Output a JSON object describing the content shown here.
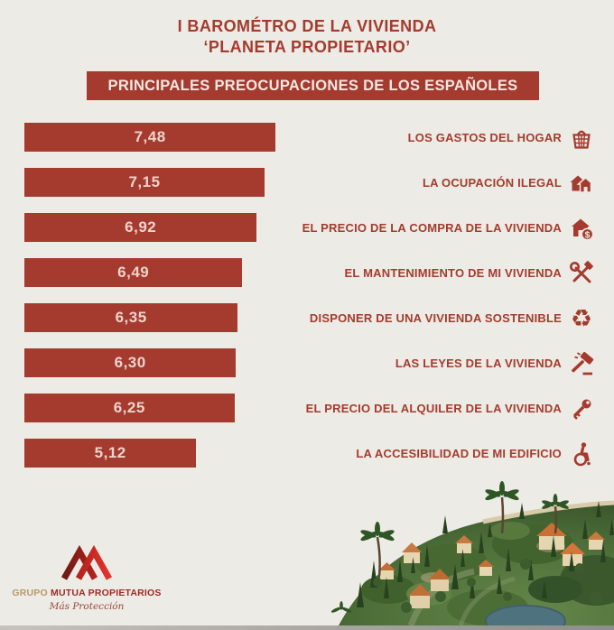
{
  "title": {
    "line1": "I BAROMÉTRO DE LA VIVIENDA",
    "line2": "‘PLANETA PROPIETARIO’"
  },
  "header": {
    "label": "PRINCIPALES PREOCUPACIONES DE LOS ESPAÑOLES"
  },
  "chart_data": {
    "type": "bar",
    "orientation": "horizontal",
    "title": "PRINCIPALES PREOCUPACIONES DE LOS ESPAÑOLES",
    "categories": [
      "LOS GASTOS DEL HOGAR",
      "LA OCUPACIÓN ILEGAL",
      "EL PRECIO DE LA COMPRA DE LA VIVIENDA",
      "EL MANTENIMIENTO DE MI VIVIENDA",
      "DISPONER DE UNA VIVIENDA SOSTENIBLE",
      "LAS LEYES DE LA VIVIENDA",
      "EL PRECIO DEL ALQUILER DE LA VIVIENDA",
      "LA ACCESIBILIDAD DE MI EDIFICIO"
    ],
    "values": [
      7.48,
      7.15,
      6.92,
      6.49,
      6.35,
      6.3,
      6.25,
      5.12
    ],
    "value_labels": [
      "7,48",
      "7,15",
      "6,92",
      "6,49",
      "6,35",
      "6,30",
      "6,25",
      "5,12"
    ],
    "icons": [
      "basket-icon",
      "house-occupation-icon",
      "house-price-icon",
      "tools-icon",
      "recycle-icon",
      "gavel-icon",
      "key-icon",
      "wheelchair-icon"
    ],
    "xlim": [
      0,
      7.48
    ],
    "bar_color": "#a43b2e",
    "legend": null,
    "grid": false
  },
  "footer": {
    "brand_prefix": "GRUPO",
    "brand_name": "MUTUA PROPIETARIOS",
    "brand_tagline": "Más Protección"
  },
  "colors": {
    "background": "#edebe5",
    "bar_red": "#a43b2e",
    "value_text": "#eed3cc",
    "header_text": "#f3e7e2",
    "brand_gold": "#b79a6b"
  }
}
